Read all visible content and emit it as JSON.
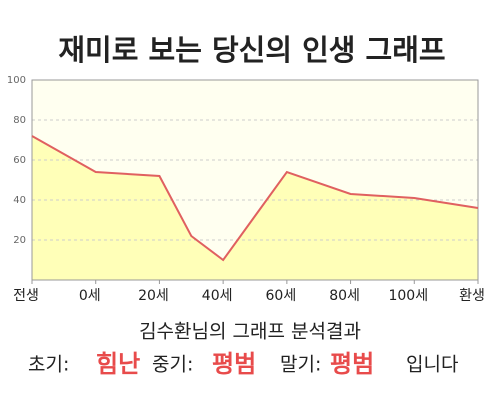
{
  "chart_data": {
    "type": "area",
    "title": "재미로 보는 당신의 인생 그래프",
    "x": [
      -20,
      0,
      20,
      30,
      40,
      60,
      80,
      100,
      120
    ],
    "values": [
      72,
      54,
      52,
      22,
      10,
      54,
      43,
      41,
      36
    ],
    "color": "#e06060",
    "fill": "#ffffb8",
    "background": "#fffff0",
    "xlim": [
      -20,
      120
    ],
    "xticks": [
      {
        "value": -20,
        "label": "전생"
      },
      {
        "value": 0,
        "label": "0세"
      },
      {
        "value": 20,
        "label": "20세"
      },
      {
        "value": 40,
        "label": "40세"
      },
      {
        "value": 60,
        "label": "60세"
      },
      {
        "value": 80,
        "label": "80세"
      },
      {
        "value": 100,
        "label": "100세"
      },
      {
        "value": 120,
        "label": "환생"
      }
    ],
    "ylim": [
      0,
      100
    ],
    "yticks": [
      20,
      40,
      60,
      80,
      100
    ],
    "grid": true
  },
  "result": {
    "heading": "김수환님의 그래프 분석결과",
    "early_label": "초기:",
    "early": "힘난",
    "middle_label": "중기:",
    "middle": "평범",
    "late_label": "말기:",
    "late": "평범",
    "ending": "입니다"
  }
}
